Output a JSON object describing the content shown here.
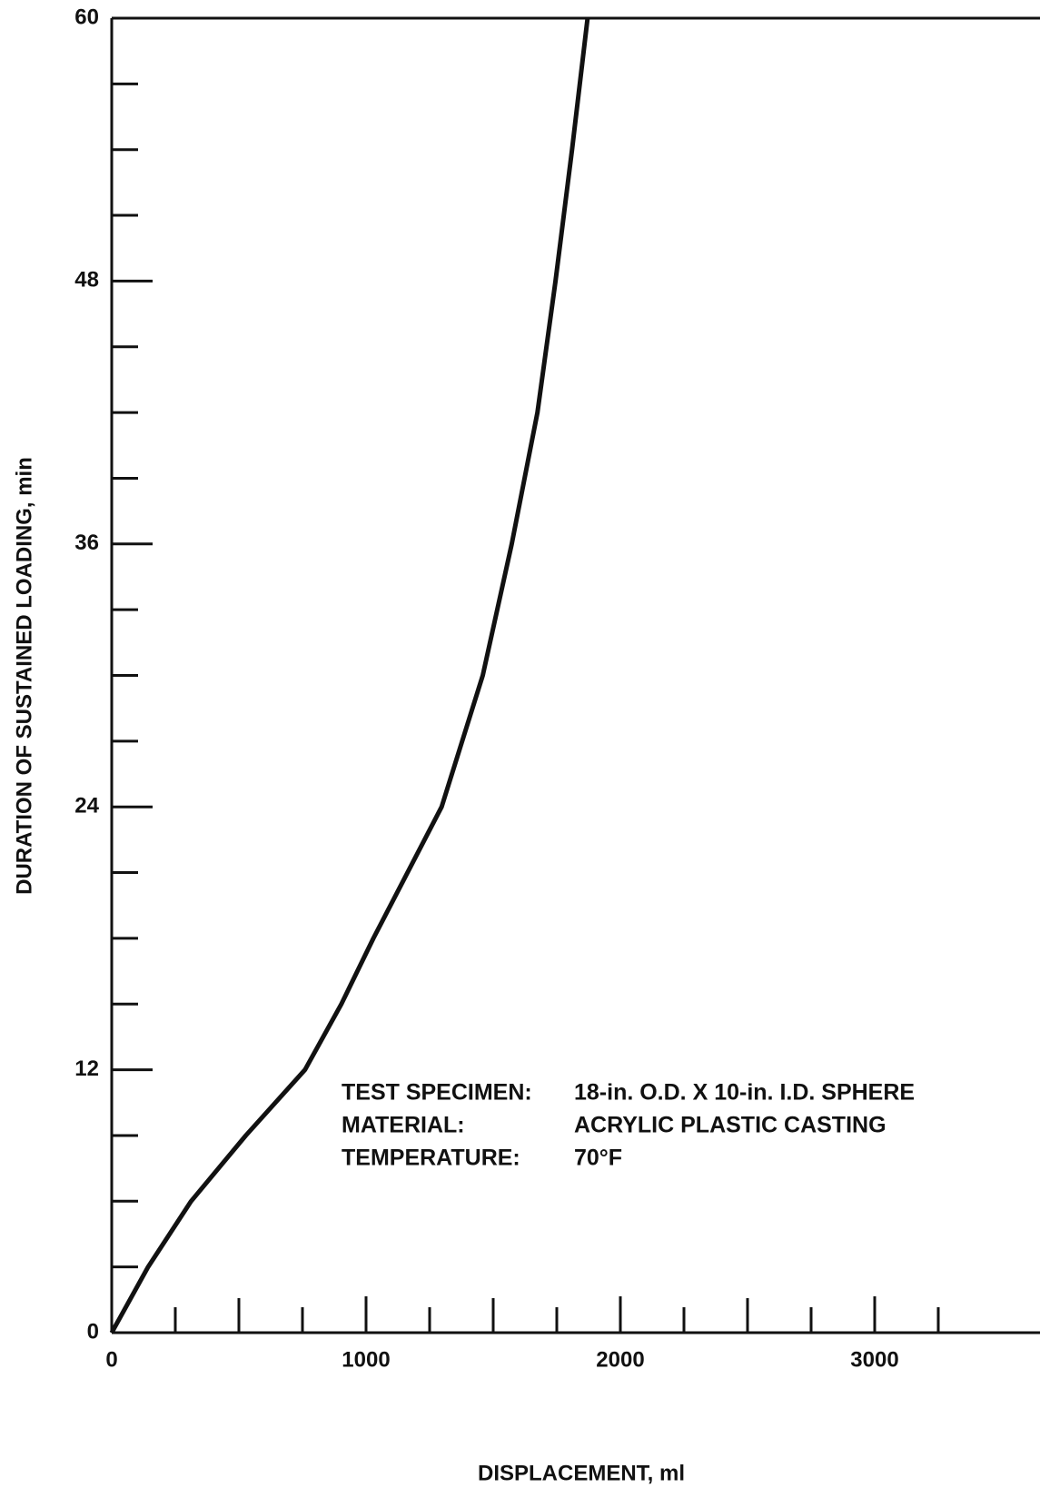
{
  "chart_data": {
    "type": "line",
    "x_label": "DISPLACEMENT, ml",
    "y_label": "DURATION OF SUSTAINED LOADING, min",
    "xlim": [
      0,
      3650
    ],
    "ylim": [
      0,
      60
    ],
    "xticks": [
      0,
      1000,
      2000,
      3000
    ],
    "yticks": [
      0,
      12,
      24,
      36,
      48,
      60
    ],
    "xminor_ticks": [
      250,
      500,
      750,
      1250,
      1500,
      1750,
      2250,
      2500,
      2750,
      3250
    ],
    "yminor_ticks": [
      3,
      6,
      9,
      15,
      18,
      21,
      27,
      30,
      33,
      39,
      42,
      45,
      51,
      54,
      57
    ],
    "series": [
      {
        "name": "Displacement",
        "color": "#111111",
        "x": [
          0,
          143,
          312,
          527,
          760,
          903,
          1029,
          1297,
          1459,
          1573,
          1674,
          1745,
          1810,
          1871
        ],
        "values": [
          0,
          3,
          6,
          9,
          12,
          15,
          18,
          24,
          30,
          36,
          42,
          48,
          54,
          60
        ]
      }
    ],
    "annotations": [
      {
        "label": "TEST SPECIMEN:",
        "text": "18-in. O.D. X 10-in. I.D. SPHERE"
      },
      {
        "label": "MATERIAL:",
        "text": "ACRYLIC PLASTIC CASTING"
      },
      {
        "label": "TEMPERATURE:",
        "text": "70°F"
      }
    ]
  }
}
